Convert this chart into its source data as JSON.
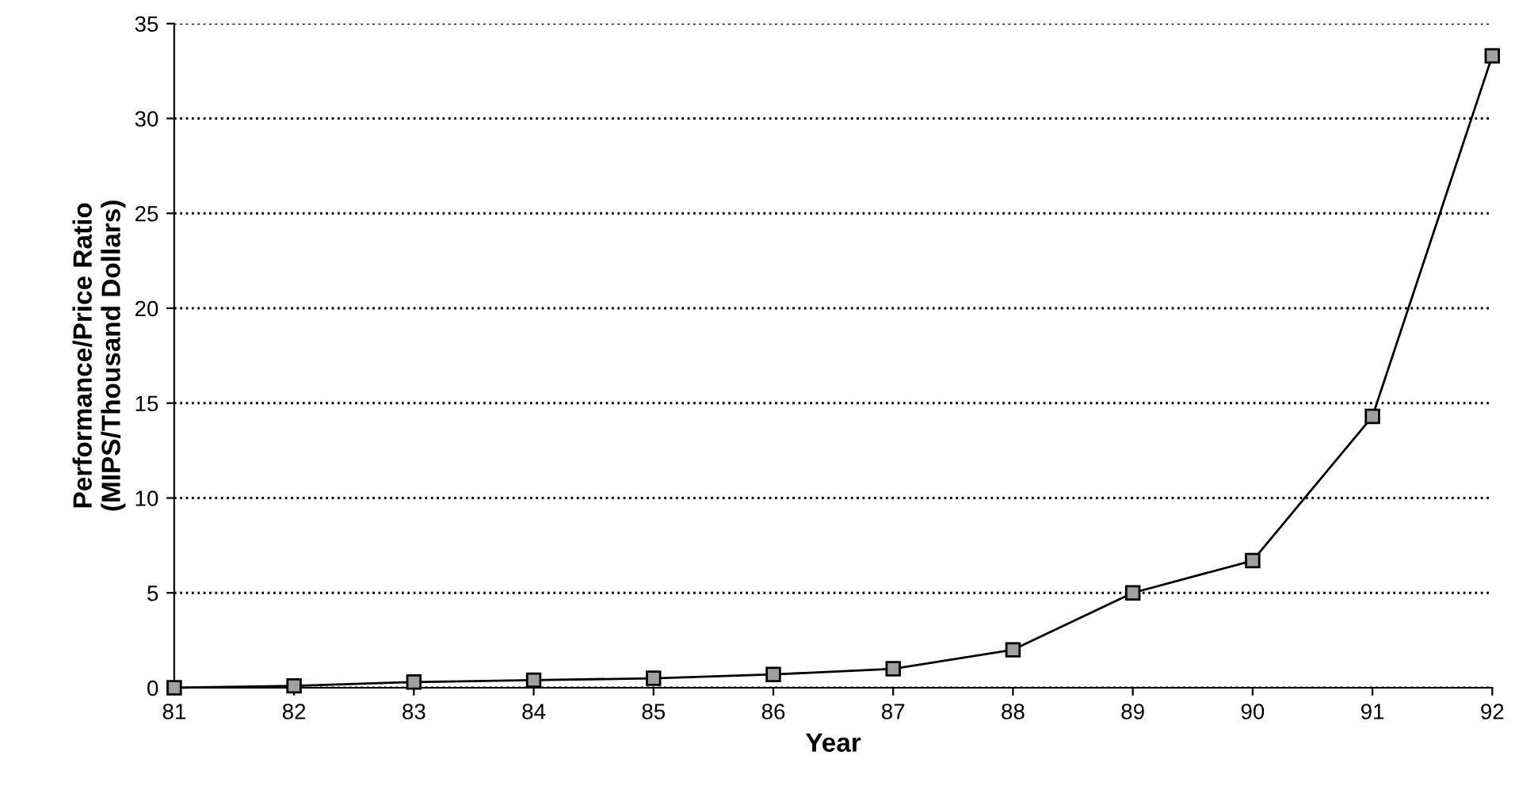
{
  "chart_data": {
    "type": "line",
    "xlabel": "Year",
    "ylabel": "Performance/Price Ratio\n(MIPS/Thousand Dollars)",
    "x": [
      81,
      82,
      83,
      84,
      85,
      86,
      87,
      88,
      89,
      90,
      91,
      92
    ],
    "series": [
      {
        "color": "#a0a0a0",
        "values": [
          0,
          0.1,
          0.3,
          0.4,
          0.5,
          0.7,
          1.0,
          2.0,
          5.0,
          6.7,
          14.3,
          33.3
        ]
      }
    ],
    "xlim": [
      81,
      92
    ],
    "xticks": [
      81,
      82,
      83,
      84,
      85,
      86,
      87,
      88,
      89,
      90,
      91,
      92
    ],
    "ylim": [
      0,
      35
    ],
    "yticks": [
      0,
      5,
      10,
      15,
      20,
      25,
      30,
      35
    ],
    "grid": "y",
    "marker": "square",
    "line_style": "solid",
    "legend": false
  }
}
